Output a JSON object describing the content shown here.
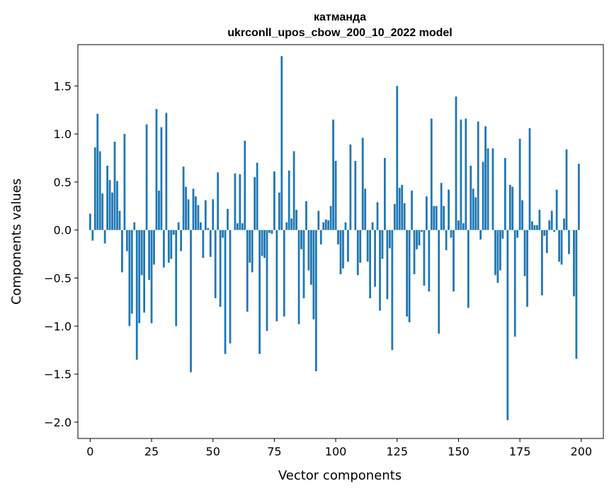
{
  "chart_data": {
    "type": "bar",
    "title": "катманда",
    "subtitle": "ukrconll_upos_cbow_200_10_2022 model",
    "xlabel": "Vector components",
    "ylabel": "Components values",
    "xlim": [
      -5,
      209
    ],
    "ylim": [
      -2.17,
      1.93
    ],
    "xticks": [
      0,
      25,
      50,
      75,
      100,
      125,
      150,
      175,
      200
    ],
    "xtick_labels": [
      "0",
      "25",
      "50",
      "75",
      "100",
      "125",
      "150",
      "175",
      "200"
    ],
    "yticks": [
      -2.0,
      -1.5,
      -1.0,
      -0.5,
      0.0,
      0.5,
      1.0,
      1.5
    ],
    "ytick_labels": [
      "−2.0",
      "−1.5",
      "−1.0",
      "−0.5",
      "0.0",
      "0.5",
      "1.0",
      "1.5"
    ],
    "bar_color": "#1f77b4",
    "x": [
      0,
      1,
      2,
      3,
      4,
      5,
      6,
      7,
      8,
      9,
      10,
      11,
      12,
      13,
      14,
      15,
      16,
      17,
      18,
      19,
      20,
      21,
      22,
      23,
      24,
      25,
      26,
      27,
      28,
      29,
      30,
      31,
      32,
      33,
      34,
      35,
      36,
      37,
      38,
      39,
      40,
      41,
      42,
      43,
      44,
      45,
      46,
      47,
      48,
      49,
      50,
      51,
      52,
      53,
      54,
      55,
      56,
      57,
      58,
      59,
      60,
      61,
      62,
      63,
      64,
      65,
      66,
      67,
      68,
      69,
      70,
      71,
      72,
      73,
      74,
      75,
      76,
      77,
      78,
      79,
      80,
      81,
      82,
      83,
      84,
      85,
      86,
      87,
      88,
      89,
      90,
      91,
      92,
      93,
      94,
      95,
      96,
      97,
      98,
      99,
      100,
      101,
      102,
      103,
      104,
      105,
      106,
      107,
      108,
      109,
      110,
      111,
      112,
      113,
      114,
      115,
      116,
      117,
      118,
      119,
      120,
      121,
      122,
      123,
      124,
      125,
      126,
      127,
      128,
      129,
      130,
      131,
      132,
      133,
      134,
      135,
      136,
      137,
      138,
      139,
      140,
      141,
      142,
      143,
      144,
      145,
      146,
      147,
      148,
      149,
      150,
      151,
      152,
      153,
      154,
      155,
      156,
      157,
      158,
      159,
      160,
      161,
      162,
      163,
      164,
      165,
      166,
      167,
      168,
      169,
      170,
      171,
      172,
      173,
      174,
      175,
      176,
      177,
      178,
      179,
      180,
      181,
      182,
      183,
      184,
      185,
      186,
      187,
      188,
      189,
      190,
      191,
      192,
      193,
      194,
      195,
      196,
      197,
      198,
      199
    ],
    "values": [
      0.17,
      -0.11,
      0.86,
      1.21,
      0.82,
      0.38,
      -0.14,
      0.67,
      0.52,
      0.39,
      0.92,
      0.51,
      0.2,
      -0.44,
      1.0,
      -0.22,
      -1.0,
      -0.87,
      0.08,
      -1.35,
      -0.97,
      -0.47,
      -0.86,
      1.1,
      -0.52,
      -0.97,
      -0.36,
      1.26,
      0.41,
      1.07,
      -0.39,
      1.22,
      -0.34,
      -0.3,
      -0.05,
      -1.0,
      0.08,
      -0.22,
      0.66,
      0.45,
      0.32,
      -1.48,
      0.43,
      0.35,
      0.26,
      0.08,
      -0.29,
      0.31,
      0.02,
      -0.28,
      0.32,
      -0.71,
      0.6,
      -0.8,
      -0.08,
      -1.29,
      0.22,
      -1.18,
      0.0,
      0.59,
      0.07,
      0.58,
      0.07,
      0.93,
      -0.85,
      -0.34,
      -0.44,
      0.55,
      0.7,
      -1.29,
      -0.27,
      -0.29,
      -1.05,
      -0.03,
      -0.04,
      0.61,
      -0.95,
      0.39,
      1.81,
      -0.9,
      0.08,
      0.62,
      0.12,
      0.82,
      0.21,
      -0.98,
      -0.2,
      -0.71,
      0.3,
      -0.42,
      -0.57,
      -0.93,
      -1.47,
      0.2,
      -0.15,
      0.08,
      0.11,
      0.1,
      0.25,
      1.15,
      0.72,
      -0.15,
      -0.46,
      -0.4,
      0.08,
      -0.33,
      0.89,
      0.0,
      0.72,
      -0.47,
      -0.34,
      0.96,
      0.43,
      -0.33,
      -0.71,
      0.08,
      -0.59,
      0.29,
      -0.84,
      -0.3,
      0.75,
      -0.72,
      -0.19,
      -1.25,
      0.27,
      1.5,
      0.44,
      0.47,
      0.28,
      -0.9,
      -0.96,
      0.41,
      -0.46,
      -0.2,
      -0.16,
      -0.02,
      -0.58,
      0.35,
      -0.64,
      1.16,
      0.25,
      0.25,
      -1.08,
      0.49,
      0.25,
      -0.21,
      0.42,
      -0.08,
      -0.64,
      1.39,
      0.1,
      1.15,
      0.07,
      1.16,
      -0.81,
      0.67,
      0.43,
      0.34,
      1.13,
      -0.1,
      0.71,
      1.08,
      0.85,
      0.0,
      0.85,
      -0.47,
      -0.55,
      -0.42,
      -0.09,
      0.75,
      -1.98,
      0.47,
      0.45,
      -1.11,
      -0.08,
      0.95,
      0.31,
      -0.48,
      -0.8,
      1.06,
      0.09,
      0.05,
      0.05,
      0.21,
      -0.68,
      -0.06,
      -0.24,
      0.1,
      0.2,
      -0.02,
      0.42,
      -0.33,
      -0.36,
      0.12,
      0.84,
      -0.25,
      0.0,
      -0.69,
      -1.34,
      0.69
    ]
  }
}
